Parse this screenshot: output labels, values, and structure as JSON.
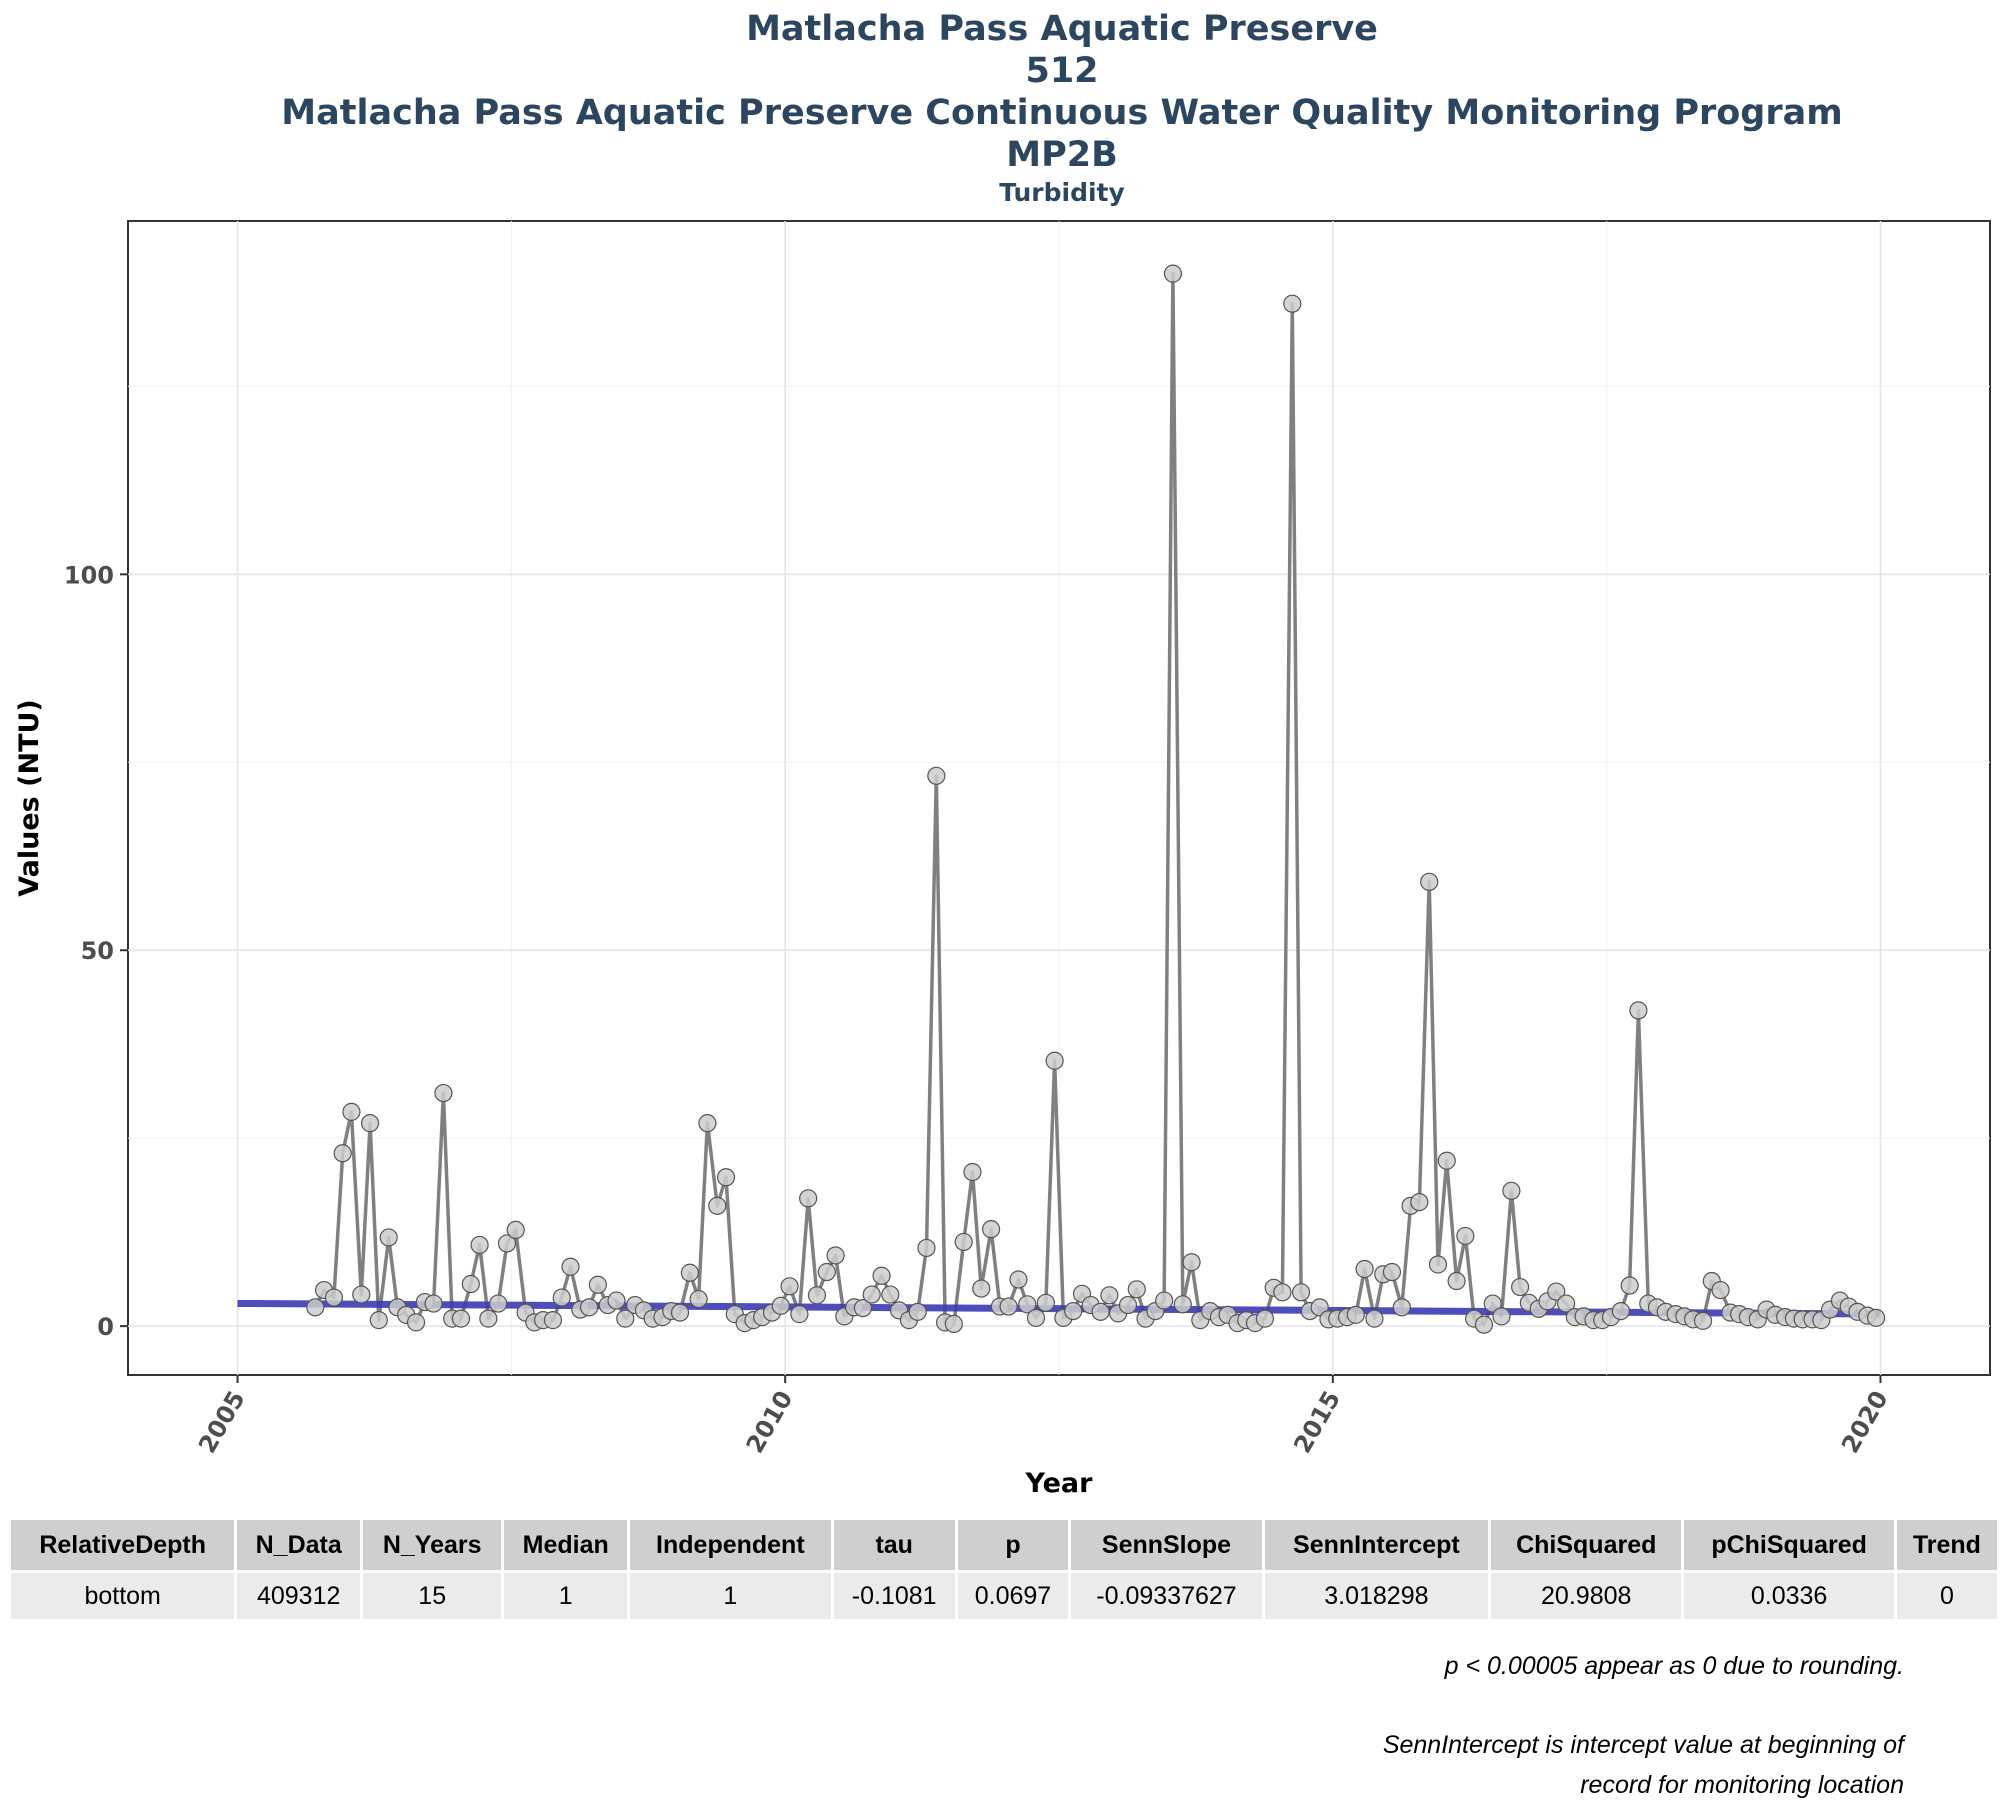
{
  "titles": {
    "line1": "Matlacha Pass Aquatic Preserve",
    "line2": "512",
    "line3": "Matlacha Pass Aquatic Preserve Continuous Water Quality Monitoring Program",
    "line4": "MP2B",
    "subtitle": "Turbidity"
  },
  "chart_data": {
    "type": "line",
    "title": "Matlacha Pass Aquatic Preserve",
    "subtitle": "Turbidity",
    "xlabel": "Year",
    "ylabel": "Values (NTU)",
    "xlim": [
      2004.0,
      2021.0
    ],
    "ylim": [
      -6.5,
      147.0
    ],
    "x_ticks": [
      2005,
      2010,
      2015,
      2020
    ],
    "y_ticks": [
      0,
      50,
      100
    ],
    "grid": true,
    "legend": "none",
    "colors": {
      "series": "#808080",
      "marker_fill": "#cccccc",
      "marker_stroke": "#555555",
      "trend": "#3a3ab4"
    },
    "series": [
      {
        "x": [
          2005.71,
          2005.79,
          2005.88,
          2005.96,
          2006.04,
          2006.13,
          2006.21,
          2006.29,
          2006.38,
          2006.46,
          2006.54,
          2006.63,
          2006.71,
          2006.79,
          2006.88,
          2006.96,
          2007.04,
          2007.13,
          2007.21,
          2007.29,
          2007.38,
          2007.46,
          2007.54,
          2007.63,
          2007.71,
          2007.79,
          2007.88,
          2007.96,
          2008.04,
          2008.13,
          2008.21,
          2008.29,
          2008.38,
          2008.46,
          2008.54,
          2008.63,
          2008.71,
          2008.79,
          2008.88,
          2008.96,
          2009.04,
          2009.13,
          2009.21,
          2009.29,
          2009.38,
          2009.46,
          2009.54,
          2009.63,
          2009.71,
          2009.79,
          2009.88,
          2009.96,
          2010.04,
          2010.13,
          2010.21,
          2010.29,
          2010.38,
          2010.46,
          2010.54,
          2010.63,
          2010.71,
          2010.79,
          2010.88,
          2010.96,
          2011.04,
          2011.13,
          2011.21,
          2011.29,
          2011.38,
          2011.46,
          2011.54,
          2011.63,
          2011.71,
          2011.79,
          2011.88,
          2011.96,
          2012.04,
          2012.13,
          2012.21,
          2012.29,
          2012.38,
          2012.46,
          2012.54,
          2012.63,
          2012.71,
          2012.79,
          2012.88,
          2012.96,
          2013.04,
          2013.13,
          2013.21,
          2013.29,
          2013.38,
          2013.46,
          2013.54,
          2013.63,
          2013.71,
          2013.79,
          2013.88,
          2013.96,
          2014.04,
          2014.13,
          2014.21,
          2014.29,
          2014.38,
          2014.46,
          2014.54,
          2014.63,
          2014.71,
          2014.79,
          2014.88,
          2014.96,
          2015.04,
          2015.13,
          2015.21,
          2015.29,
          2015.38,
          2015.46,
          2015.54,
          2015.63,
          2015.71,
          2015.79,
          2015.88,
          2015.96,
          2016.04,
          2016.13,
          2016.21,
          2016.29,
          2016.38,
          2016.46,
          2016.54,
          2016.63,
          2016.71,
          2016.79,
          2016.88,
          2016.96,
          2017.04,
          2017.13,
          2017.21,
          2017.29,
          2017.38,
          2017.46,
          2017.54,
          2017.63,
          2017.71,
          2017.79,
          2017.88,
          2017.96,
          2018.04,
          2018.13,
          2018.21,
          2018.29,
          2018.38,
          2018.46,
          2018.54,
          2018.63,
          2018.71,
          2018.79,
          2018.88,
          2018.96,
          2019.04,
          2019.13,
          2019.21,
          2019.29,
          2019.38,
          2019.46,
          2019.54,
          2019.63,
          2019.71,
          2019.79,
          2019.88,
          2019.96
        ],
        "values": [
          2.5,
          4.8,
          3.8,
          23.0,
          28.5,
          4.2,
          27.0,
          0.8,
          11.8,
          2.5,
          1.5,
          0.5,
          3.2,
          3.0,
          31.0,
          1.0,
          1.0,
          5.6,
          10.8,
          1.0,
          3.0,
          11.0,
          12.8,
          1.8,
          0.5,
          0.8,
          0.8,
          3.8,
          7.9,
          2.2,
          2.5,
          5.5,
          2.8,
          3.4,
          1.0,
          2.8,
          2.1,
          1.0,
          1.2,
          2.0,
          1.8,
          7.1,
          3.6,
          27.0,
          16.0,
          19.8,
          1.6,
          0.4,
          0.8,
          1.2,
          1.8,
          2.7,
          5.3,
          1.6,
          17.0,
          4.1,
          7.2,
          9.4,
          1.3,
          2.5,
          2.4,
          4.2,
          6.7,
          4.2,
          2.1,
          0.8,
          1.9,
          10.4,
          73.2,
          0.5,
          0.3,
          11.2,
          20.5,
          5.0,
          12.9,
          2.6,
          2.6,
          6.2,
          2.9,
          1.1,
          3.1,
          35.3,
          1.1,
          2.0,
          4.3,
          2.8,
          1.9,
          4.1,
          1.7,
          2.8,
          4.9,
          1.0,
          2.0,
          3.4,
          140.0,
          2.9,
          8.5,
          0.8,
          2.0,
          1.2,
          1.5,
          0.4,
          0.8,
          0.4,
          1.0,
          5.1,
          4.5,
          136.0,
          4.5,
          2.0,
          2.5,
          0.9,
          1.0,
          1.2,
          1.5,
          7.6,
          1.0,
          6.9,
          7.2,
          2.5,
          16.0,
          16.5,
          59.1,
          8.2,
          22.0,
          6.0,
          12.0,
          1.0,
          0.2,
          3.0,
          1.3,
          18.0,
          5.2,
          3.1,
          2.3,
          3.3,
          4.6,
          3.0,
          1.2,
          1.3,
          0.8,
          0.8,
          1.2,
          2.0,
          5.4,
          42.0,
          3.0,
          2.5,
          1.9,
          1.6,
          1.3,
          0.9,
          0.7,
          6.0,
          4.8,
          1.8,
          1.6,
          1.2,
          0.9,
          2.2,
          1.5,
          1.2,
          1.0,
          0.9,
          0.9,
          0.8,
          2.2,
          3.4,
          2.6,
          1.9,
          1.4,
          1.1
        ]
      }
    ],
    "trend_line": {
      "x": [
        2005.0,
        2020.0
      ],
      "y": [
        3.018298,
        1.618
      ]
    }
  },
  "table": {
    "headers": [
      "RelativeDepth",
      "N_Data",
      "N_Years",
      "Median",
      "Independent",
      "tau",
      "p",
      "SennSlope",
      "SennIntercept",
      "ChiSquared",
      "pChiSquared",
      "Trend"
    ],
    "rows": [
      [
        "bottom",
        "409312",
        "15",
        "1",
        "1",
        "-0.1081",
        "0.0697",
        "-0.09337627",
        "3.018298",
        "20.9808",
        "0.0336",
        "0"
      ]
    ]
  },
  "notes": {
    "note1": "p < 0.00005 appear as 0 due to rounding.",
    "note2_line1": "SennIntercept is intercept value at beginning of",
    "note2_line2": "record for monitoring location"
  }
}
